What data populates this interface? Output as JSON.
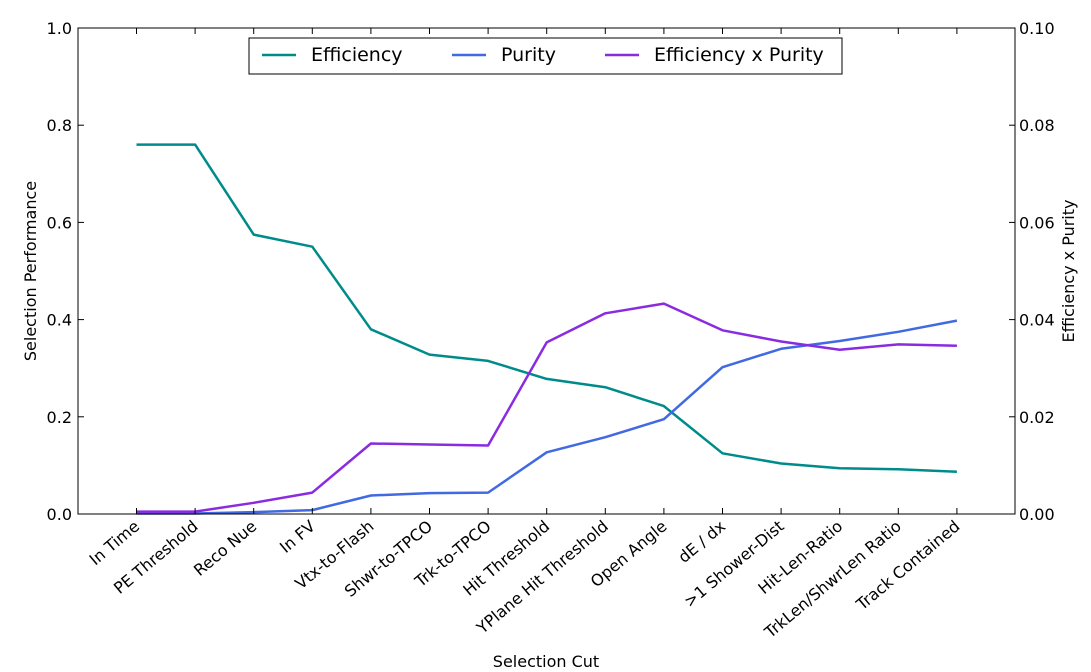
{
  "chart_data": {
    "type": "line",
    "xlabel": "Selection Cut",
    "ylabel": "Selection Performance",
    "y2label": "Efficiency x Purity",
    "ylim": [
      0,
      1.0
    ],
    "y2lim": [
      0,
      0.1
    ],
    "yticks": [
      "0.0",
      "0.2",
      "0.4",
      "0.6",
      "0.8",
      "1.0"
    ],
    "y2ticks": [
      "0.00",
      "0.02",
      "0.04",
      "0.06",
      "0.08",
      "0.10"
    ],
    "grid": false,
    "legend_position": "top-center",
    "categories": [
      "In Time",
      "PE Threshold",
      "Reco Nue",
      "In FV",
      "Vtx-to-Flash",
      "Shwr-to-TPCO",
      "Trk-to-TPCO",
      "Hit Threshold",
      "YPlane Hit Threshold",
      "Open Angle",
      "dE / dx",
      ">1 Shower-Dist",
      "Hit-Len-Ratio",
      "TrkLen/ShwrLen Ratio",
      "Track Contained"
    ],
    "series": [
      {
        "name": "Efficiency",
        "axis": "left",
        "color": "#008b8b",
        "values": [
          0.76,
          0.76,
          0.575,
          0.55,
          0.38,
          0.328,
          0.315,
          0.278,
          0.261,
          0.222,
          0.125,
          0.104,
          0.094,
          0.092,
          0.087
        ]
      },
      {
        "name": "Purity",
        "axis": "left",
        "color": "#4169e1",
        "values": [
          0.001,
          0.001,
          0.004,
          0.008,
          0.038,
          0.043,
          0.044,
          0.127,
          0.158,
          0.195,
          0.302,
          0.34,
          0.356,
          0.375,
          0.398
        ]
      },
      {
        "name": "Efficiency x Purity",
        "axis": "right",
        "color": "#8a2be2",
        "values": [
          0.0005,
          0.0005,
          0.0023,
          0.0044,
          0.0145,
          0.0143,
          0.0141,
          0.0353,
          0.0413,
          0.0433,
          0.0378,
          0.0355,
          0.0338,
          0.0349,
          0.0346
        ]
      }
    ]
  }
}
